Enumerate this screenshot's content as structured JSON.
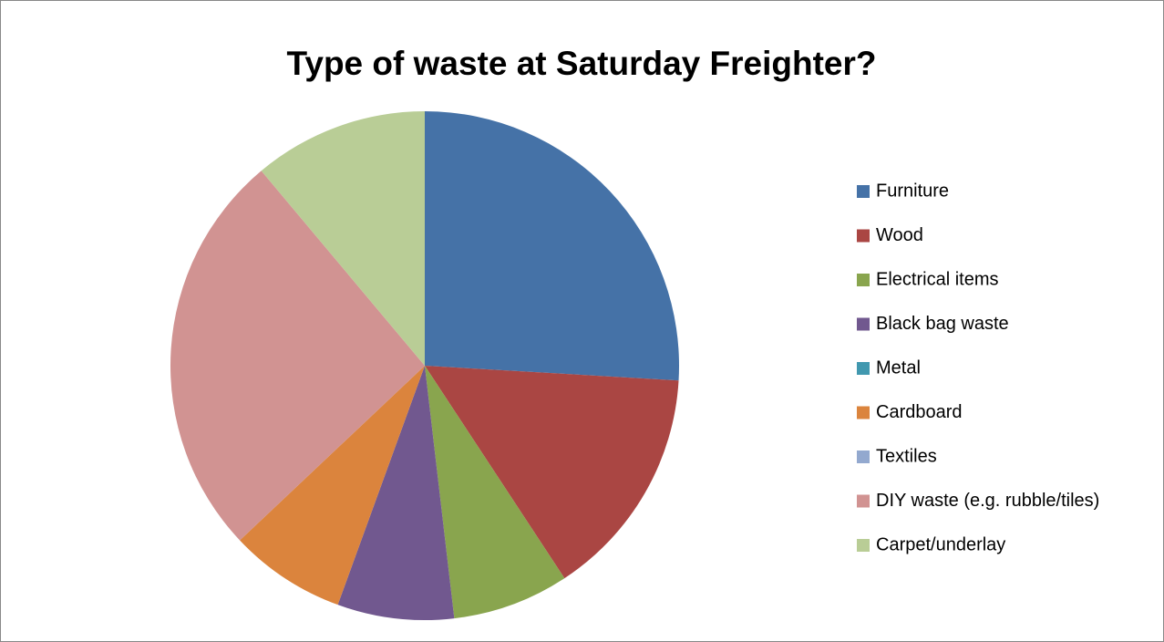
{
  "chart_data": {
    "type": "pie",
    "title": "Type of waste at Saturday Freighter?",
    "categories": [
      "Furniture",
      "Wood",
      "Electrical items",
      "Black bag waste",
      "Metal",
      "Cardboard",
      "Textiles",
      "DIY waste (e.g. rubble/tiles)",
      "Carpet/underlay"
    ],
    "values": [
      7,
      4,
      2,
      2,
      0,
      2,
      0,
      7,
      3
    ],
    "colors": [
      "#4572a7",
      "#aa4643",
      "#89a54e",
      "#71588f",
      "#4198af",
      "#db843d",
      "#93a9cf",
      "#d19392",
      "#b9cd96"
    ],
    "legend": "right"
  }
}
